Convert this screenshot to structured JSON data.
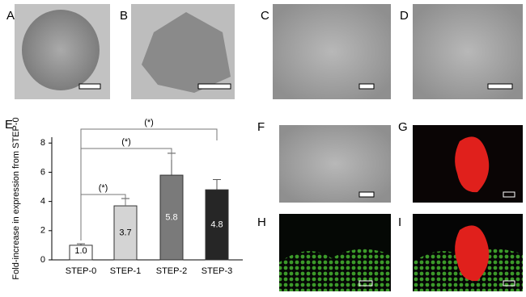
{
  "panels": {
    "labels": [
      "A",
      "B",
      "C",
      "D",
      "E",
      "F",
      "G",
      "H",
      "I"
    ]
  },
  "chart_data": {
    "type": "bar",
    "ylabel": "Fold-increase in expression from STEP-0",
    "categories": [
      "STEP-0",
      "STEP-1",
      "STEP-2",
      "STEP-3"
    ],
    "values": [
      1.0,
      3.7,
      5.8,
      4.8
    ],
    "value_labels": [
      "1.0",
      "3.7",
      "5.8",
      "4.8"
    ],
    "errors": [
      0.1,
      0.5,
      1.5,
      0.7
    ],
    "colors": [
      "#ffffff",
      "#d4d4d4",
      "#7a7a7a",
      "#262626"
    ],
    "ylim": [
      0,
      8.4
    ],
    "yticks": [
      0,
      2,
      4,
      6,
      8
    ],
    "annotations": [
      {
        "text": "(*)",
        "from": 0,
        "to": 1
      },
      {
        "text": "(*)",
        "from": 0,
        "to": 2
      },
      {
        "text": "(*)",
        "from": 0,
        "to": 3
      }
    ]
  }
}
